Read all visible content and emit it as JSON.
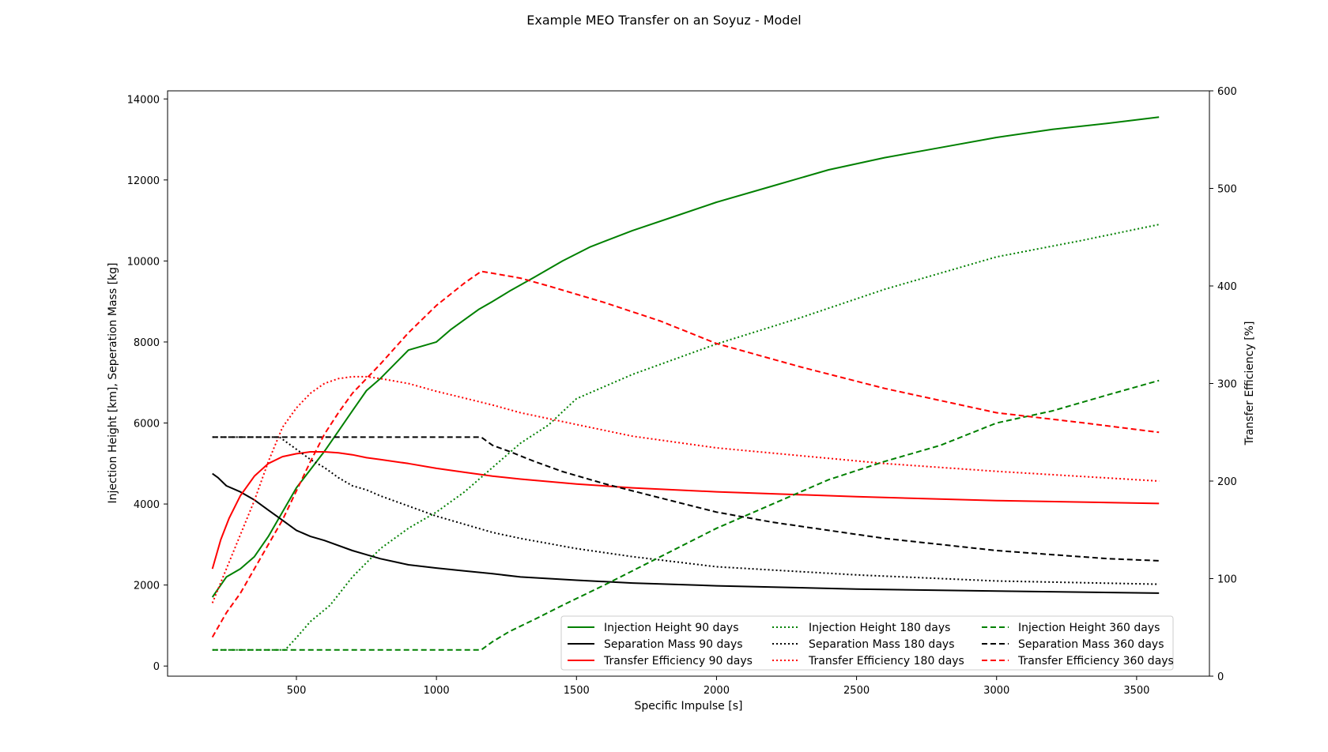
{
  "chart_data": {
    "type": "line",
    "title": "Example MEO Transfer on an Soyuz - Model",
    "xlabel": "Specific Impulse [s]",
    "ylabel_left": "Injection Height [km], Seperation Mass [kg]",
    "ylabel_right": "Transfer Efficiency [%]",
    "xlim": [
      40,
      3760
    ],
    "ylim_left": [
      -250,
      14200
    ],
    "ylim_right": [
      0,
      600
    ],
    "xticks": [
      500,
      1000,
      1500,
      2000,
      2500,
      3000,
      3500
    ],
    "yticks_left": [
      0,
      2000,
      4000,
      6000,
      8000,
      10000,
      12000,
      14000
    ],
    "yticks_right": [
      0,
      100,
      200,
      300,
      400,
      500,
      600
    ],
    "grid": false,
    "legend_position": "lower-right",
    "series": [
      {
        "name": "Injection Height 90 days",
        "axis": "left",
        "color": "#008000",
        "style": "solid",
        "x": [
          200,
          220,
          250,
          300,
          350,
          400,
          450,
          500,
          550,
          600,
          650,
          700,
          750,
          800,
          900,
          1000,
          1050,
          1100,
          1150,
          1200,
          1260,
          1350,
          1450,
          1550,
          1700,
          1850,
          2000,
          2200,
          2400,
          2600,
          2800,
          3000,
          3200,
          3400,
          3580
        ],
        "y": [
          1700,
          1900,
          2200,
          2400,
          2700,
          3200,
          3800,
          4400,
          4850,
          5300,
          5800,
          6300,
          6800,
          7100,
          7800,
          8000,
          8300,
          8550,
          8800,
          9000,
          9250,
          9600,
          10000,
          10350,
          10750,
          11100,
          11450,
          11850,
          12250,
          12550,
          12800,
          13050,
          13250,
          13400,
          13550
        ]
      },
      {
        "name": "Separation Mass 90 days",
        "axis": "left",
        "color": "#000000",
        "style": "solid",
        "x": [
          200,
          220,
          250,
          300,
          350,
          400,
          450,
          500,
          550,
          600,
          700,
          750,
          800,
          900,
          1000,
          1100,
          1200,
          1300,
          1500,
          1700,
          2000,
          2500,
          3000,
          3580
        ],
        "y": [
          4750,
          4650,
          4450,
          4300,
          4100,
          3850,
          3600,
          3350,
          3200,
          3100,
          2850,
          2750,
          2650,
          2500,
          2420,
          2350,
          2280,
          2200,
          2120,
          2050,
          1980,
          1900,
          1850,
          1800
        ]
      },
      {
        "name": "Transfer Efficiency 90 days",
        "axis": "right",
        "color": "#ff0000",
        "style": "solid",
        "x": [
          200,
          230,
          260,
          300,
          350,
          400,
          450,
          500,
          550,
          600,
          650,
          700,
          750,
          800,
          900,
          1000,
          1100,
          1200,
          1300,
          1500,
          1700,
          2000,
          2500,
          3000,
          3580
        ],
        "y": [
          110,
          140,
          162,
          185,
          205,
          218,
          225,
          228,
          230,
          230,
          229,
          227,
          224,
          222,
          218,
          213,
          209,
          205,
          202,
          197,
          193,
          189,
          184,
          180,
          177
        ]
      },
      {
        "name": "Injection Height 180 days",
        "axis": "left",
        "color": "#008000",
        "style": "dotted",
        "x": [
          200,
          460,
          500,
          550,
          620,
          700,
          800,
          900,
          1000,
          1100,
          1200,
          1300,
          1400,
          1500,
          1700,
          2000,
          2300,
          2600,
          3000,
          3300,
          3580
        ],
        "y": [
          400,
          400,
          700,
          1100,
          1500,
          2200,
          2900,
          3400,
          3800,
          4300,
          4900,
          5500,
          5950,
          6600,
          7200,
          7950,
          8600,
          9300,
          10100,
          10500,
          10900
        ]
      },
      {
        "name": "Separation Mass 180 days",
        "axis": "left",
        "color": "#000000",
        "style": "dotted",
        "x": [
          200,
          440,
          500,
          550,
          600,
          650,
          700,
          750,
          800,
          900,
          1000,
          1100,
          1200,
          1300,
          1500,
          1700,
          2000,
          2500,
          3000,
          3580
        ],
        "y": [
          5650,
          5650,
          5350,
          5100,
          4900,
          4650,
          4450,
          4350,
          4200,
          3950,
          3700,
          3500,
          3300,
          3150,
          2900,
          2700,
          2450,
          2250,
          2100,
          2020
        ]
      },
      {
        "name": "Transfer Efficiency 180 days",
        "axis": "right",
        "color": "#ff0000",
        "style": "dotted",
        "x": [
          200,
          250,
          300,
          350,
          400,
          450,
          500,
          550,
          600,
          650,
          700,
          750,
          800,
          900,
          1000,
          1100,
          1200,
          1300,
          1500,
          1700,
          2000,
          2300,
          2600,
          3000,
          3580
        ],
        "y": [
          75,
          110,
          145,
          180,
          220,
          255,
          275,
          290,
          300,
          305,
          307,
          307,
          305,
          300,
          292,
          285,
          278,
          270,
          258,
          246,
          234,
          226,
          218,
          210,
          200
        ]
      },
      {
        "name": "Injection Height 360 days",
        "axis": "left",
        "color": "#008000",
        "style": "dashed",
        "x": [
          200,
          1160,
          1200,
          1260,
          1350,
          1450,
          1600,
          1800,
          2000,
          2200,
          2400,
          2600,
          2800,
          3000,
          3200,
          3400,
          3580
        ],
        "y": [
          400,
          400,
          600,
          850,
          1150,
          1500,
          2000,
          2700,
          3400,
          4000,
          4600,
          5050,
          5450,
          6000,
          6300,
          6700,
          7050
        ]
      },
      {
        "name": "Separation Mass 360 days",
        "axis": "left",
        "color": "#000000",
        "style": "dashed",
        "x": [
          200,
          1160,
          1200,
          1260,
          1350,
          1450,
          1600,
          1800,
          2000,
          2200,
          2400,
          2600,
          2800,
          3000,
          3200,
          3400,
          3580
        ],
        "y": [
          5650,
          5650,
          5450,
          5300,
          5050,
          4800,
          4500,
          4150,
          3800,
          3550,
          3350,
          3150,
          3000,
          2850,
          2750,
          2650,
          2600
        ]
      },
      {
        "name": "Transfer Efficiency 360 days",
        "axis": "right",
        "color": "#ff0000",
        "style": "dashed",
        "x": [
          200,
          250,
          300,
          350,
          400,
          450,
          500,
          550,
          600,
          650,
          700,
          750,
          800,
          900,
          1000,
          1100,
          1160,
          1200,
          1300,
          1400,
          1600,
          1800,
          2000,
          2300,
          2600,
          3000,
          3300,
          3580
        ],
        "y": [
          40,
          65,
          85,
          110,
          135,
          160,
          190,
          220,
          248,
          270,
          290,
          305,
          320,
          352,
          380,
          403,
          415,
          413,
          408,
          400,
          383,
          364,
          341,
          317,
          295,
          270,
          260,
          250
        ]
      }
    ]
  }
}
